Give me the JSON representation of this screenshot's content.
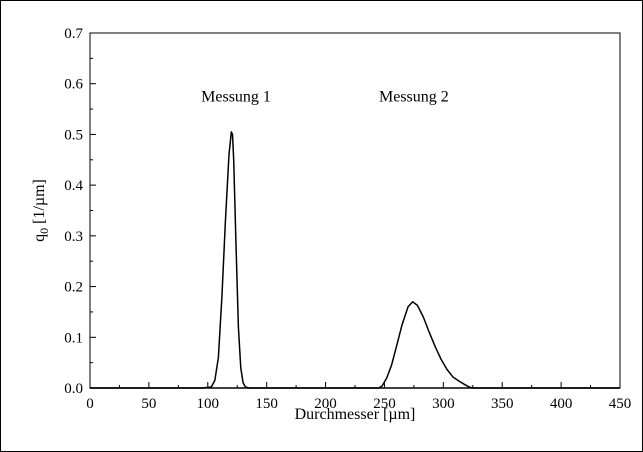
{
  "chart_data": {
    "type": "line",
    "title": "",
    "xlabel": "Durchmesser [µm]",
    "ylabel_main": "q",
    "ylabel_sub": "0",
    "ylabel_unit": " [1/µm]",
    "xlim": [
      0,
      450
    ],
    "ylim": [
      0,
      0.7
    ],
    "x_ticks": [
      0,
      50,
      100,
      150,
      200,
      250,
      300,
      350,
      400,
      450
    ],
    "y_ticks": [
      0.0,
      0.1,
      0.2,
      0.3,
      0.4,
      0.5,
      0.6,
      0.7
    ],
    "grid": false,
    "annotations": [
      {
        "text": "Messung 1",
        "x": 124,
        "y": 0.575
      },
      {
        "text": "Messung 2",
        "x": 275,
        "y": 0.575
      }
    ],
    "series": [
      {
        "x": [
          0,
          95,
          103,
          106,
          109,
          112,
          115,
          118,
          120,
          121,
          122,
          124,
          126,
          128,
          130,
          132,
          135,
          450
        ],
        "values": [
          0,
          0,
          0.002,
          0.015,
          0.06,
          0.18,
          0.33,
          0.46,
          0.505,
          0.5,
          0.45,
          0.28,
          0.12,
          0.04,
          0.01,
          0.002,
          0,
          0
        ]
      },
      {
        "x": [
          0,
          245,
          248,
          252,
          256,
          260,
          265,
          270,
          274,
          278,
          283,
          288,
          293,
          298,
          303,
          308,
          313,
          318,
          322,
          325,
          450
        ],
        "values": [
          0,
          0,
          0.004,
          0.02,
          0.045,
          0.08,
          0.125,
          0.16,
          0.17,
          0.163,
          0.14,
          0.11,
          0.082,
          0.057,
          0.037,
          0.022,
          0.014,
          0.007,
          0.002,
          0,
          0
        ]
      }
    ]
  }
}
